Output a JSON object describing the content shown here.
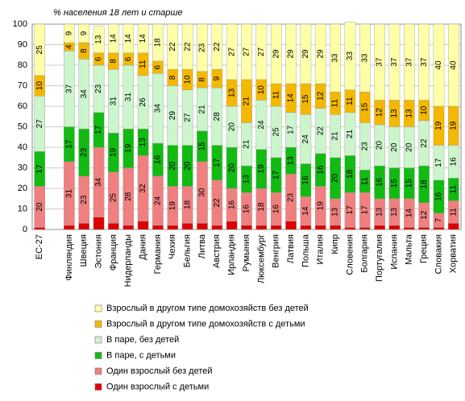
{
  "chart_data": {
    "type": "stacked_bar",
    "title": "% населения 18 лет и старше",
    "categories": [
      "ЕС-27",
      null,
      "Финляндия",
      "Швеция",
      "Эстония",
      "Франция",
      "Нидерланды",
      "Дания",
      "Германия",
      "Чехия",
      "Бельгия",
      "Литва",
      "Австрия",
      "Ирландия",
      "Румыния",
      "Люксембург",
      "Венгрия",
      "Латвия",
      "Польша",
      "Италия",
      "Кипр",
      "Словения",
      "Болгария",
      "Португалия",
      "Испания",
      "Мальта",
      "Греция",
      "Словакия",
      "Хорватия"
    ],
    "series": [
      {
        "name": "Один взрослый с детьми",
        "color": "#dd0000",
        "show_labels": false,
        "values": [
          1,
          null,
          2,
          3,
          6,
          3,
          2,
          4,
          2,
          2,
          3,
          3,
          2,
          4,
          2,
          2,
          2,
          4,
          2,
          2,
          2,
          1,
          1,
          2,
          2,
          1,
          1,
          1,
          3
        ]
      },
      {
        "name": "Один взрослый без детей",
        "color": "#f08080",
        "show_labels": true,
        "values": [
          20,
          null,
          31,
          23,
          34,
          25,
          28,
          32,
          24,
          19,
          18,
          30,
          22,
          16,
          16,
          18,
          16,
          23,
          14,
          19,
          13,
          17,
          17,
          13,
          13,
          14,
          12,
          7,
          11
        ]
      },
      {
        "name": "В паре, с детьми",
        "color": "#11bb11",
        "show_labels": true,
        "values": [
          17,
          null,
          17,
          23,
          17,
          19,
          19,
          13,
          16,
          20,
          20,
          15,
          17,
          20,
          13,
          19,
          17,
          13,
          16,
          16,
          20,
          18,
          11,
          16,
          15,
          15,
          18,
          16,
          11
        ]
      },
      {
        "name": "В паре, без детей",
        "color": "#ccf5cc",
        "show_labels": true,
        "values": [
          27,
          null,
          37,
          34,
          23,
          31,
          31,
          26,
          34,
          29,
          27,
          21,
          28,
          20,
          21,
          24,
          25,
          17,
          24,
          22,
          21,
          21,
          23,
          20,
          20,
          20,
          22,
          17,
          16
        ]
      },
      {
        "name": "Взрослый в другом типе домохозяйств с детьми",
        "color": "#f5b800",
        "show_labels": true,
        "values": [
          10,
          null,
          4,
          8,
          6,
          8,
          6,
          11,
          6,
          8,
          10,
          8,
          9,
          13,
          21,
          10,
          11,
          14,
          15,
          12,
          11,
          11,
          15,
          12,
          13,
          13,
          10,
          19,
          19
        ]
      },
      {
        "name": "Взрослый в другом типе домохозяйств без детей",
        "color": "#ffffa8",
        "show_labels": true,
        "values": [
          25,
          null,
          9,
          9,
          13,
          14,
          14,
          14,
          18,
          22,
          22,
          23,
          22,
          27,
          27,
          27,
          29,
          29,
          29,
          29,
          33,
          33,
          33,
          37,
          37,
          37,
          37,
          40,
          40
        ]
      }
    ],
    "ylim": [
      0,
      100
    ],
    "yticks": [
      0,
      10,
      20,
      30,
      40,
      50,
      60,
      70,
      80,
      90,
      100
    ],
    "grid": true
  }
}
